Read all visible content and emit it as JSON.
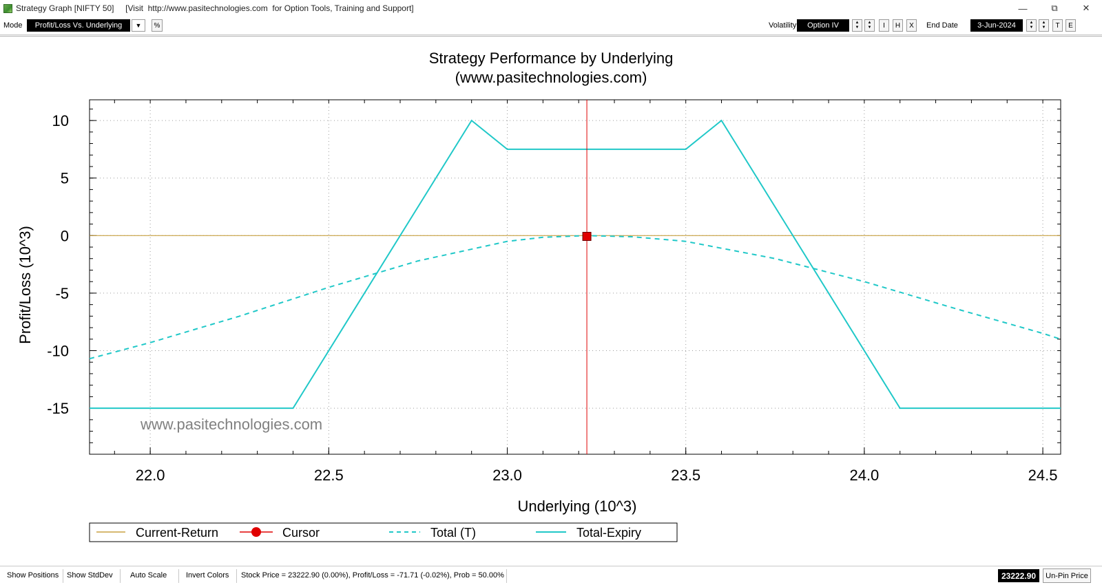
{
  "window": {
    "title": "Strategy Graph [NIFTY 50]     [Visit  http://www.pasitechnologies.com  for Option Tools, Training and Support]",
    "minimize_icon": "minimize-icon",
    "restore_icon": "restore-icon",
    "close_icon": "close-icon"
  },
  "toolbar": {
    "mode_label": "Mode",
    "mode_value": "Profit/Loss Vs. Underlying",
    "percent_button": "%",
    "volatility_label": "Volatility",
    "volatility_value": "Option IV",
    "vol_buttons": [
      "I",
      "H",
      "X"
    ],
    "end_date_label": "End Date",
    "end_date_value": "3-Jun-2024",
    "date_buttons": [
      "T",
      "E"
    ]
  },
  "chart": {
    "watermark": "www.pasitechnologies.com",
    "legend": {
      "current_return": "Current-Return",
      "cursor": "Cursor",
      "total_t": "Total (T)",
      "total_expiry": "Total-Expiry"
    }
  },
  "chart_data": {
    "type": "line",
    "title": "Strategy Performance by Underlying",
    "subtitle": "(www.pasitechnologies.com)",
    "xlabel": "Underlying (10^3)",
    "ylabel": "Profit/Loss (10^3)",
    "xlim": [
      21.83,
      24.55
    ],
    "ylim": [
      -19,
      11.8
    ],
    "x_ticks": [
      "22.0",
      "22.5",
      "23.0",
      "23.5",
      "24.0",
      "24.5"
    ],
    "y_ticks": [
      "10",
      "5",
      "0",
      "-5",
      "-10",
      "-15"
    ],
    "grid": true,
    "legend_position": "bottom",
    "cursor": {
      "x": 23.2229,
      "y": -0.07
    },
    "series": [
      {
        "name": "Current-Return",
        "color": "#c8a040",
        "style": "solid",
        "x": [
          21.83,
          24.55
        ],
        "y": [
          0,
          0
        ]
      },
      {
        "name": "Total (T)",
        "color": "#20c8c8",
        "style": "dashed",
        "x": [
          21.83,
          22.0,
          22.25,
          22.5,
          22.75,
          23.0,
          23.1,
          23.22,
          23.35,
          23.5,
          23.75,
          24.0,
          24.25,
          24.5,
          24.55
        ],
        "y": [
          -10.7,
          -9.3,
          -7.0,
          -4.5,
          -2.2,
          -0.5,
          -0.15,
          0.0,
          -0.1,
          -0.5,
          -2.0,
          -4.0,
          -6.3,
          -8.5,
          -9.0
        ]
      },
      {
        "name": "Total-Expiry",
        "color": "#20c8c8",
        "style": "solid",
        "x": [
          21.83,
          22.4,
          22.9,
          23.0,
          23.5,
          23.6,
          24.1,
          24.55
        ],
        "y": [
          -15,
          -15,
          10,
          7.5,
          7.5,
          10,
          -15,
          -15
        ]
      }
    ]
  },
  "statusbar": {
    "show_positions": "Show Positions",
    "show_stddev": "Show StdDev",
    "auto_scale": "Auto Scale",
    "invert_colors": "Invert Colors",
    "info": "Stock Price = 23222.90 (0.00%), Profit/Loss = -71.71 (-0.02%), Prob = 50.00%",
    "price": "23222.90",
    "unpin": "Un-Pin Price"
  }
}
